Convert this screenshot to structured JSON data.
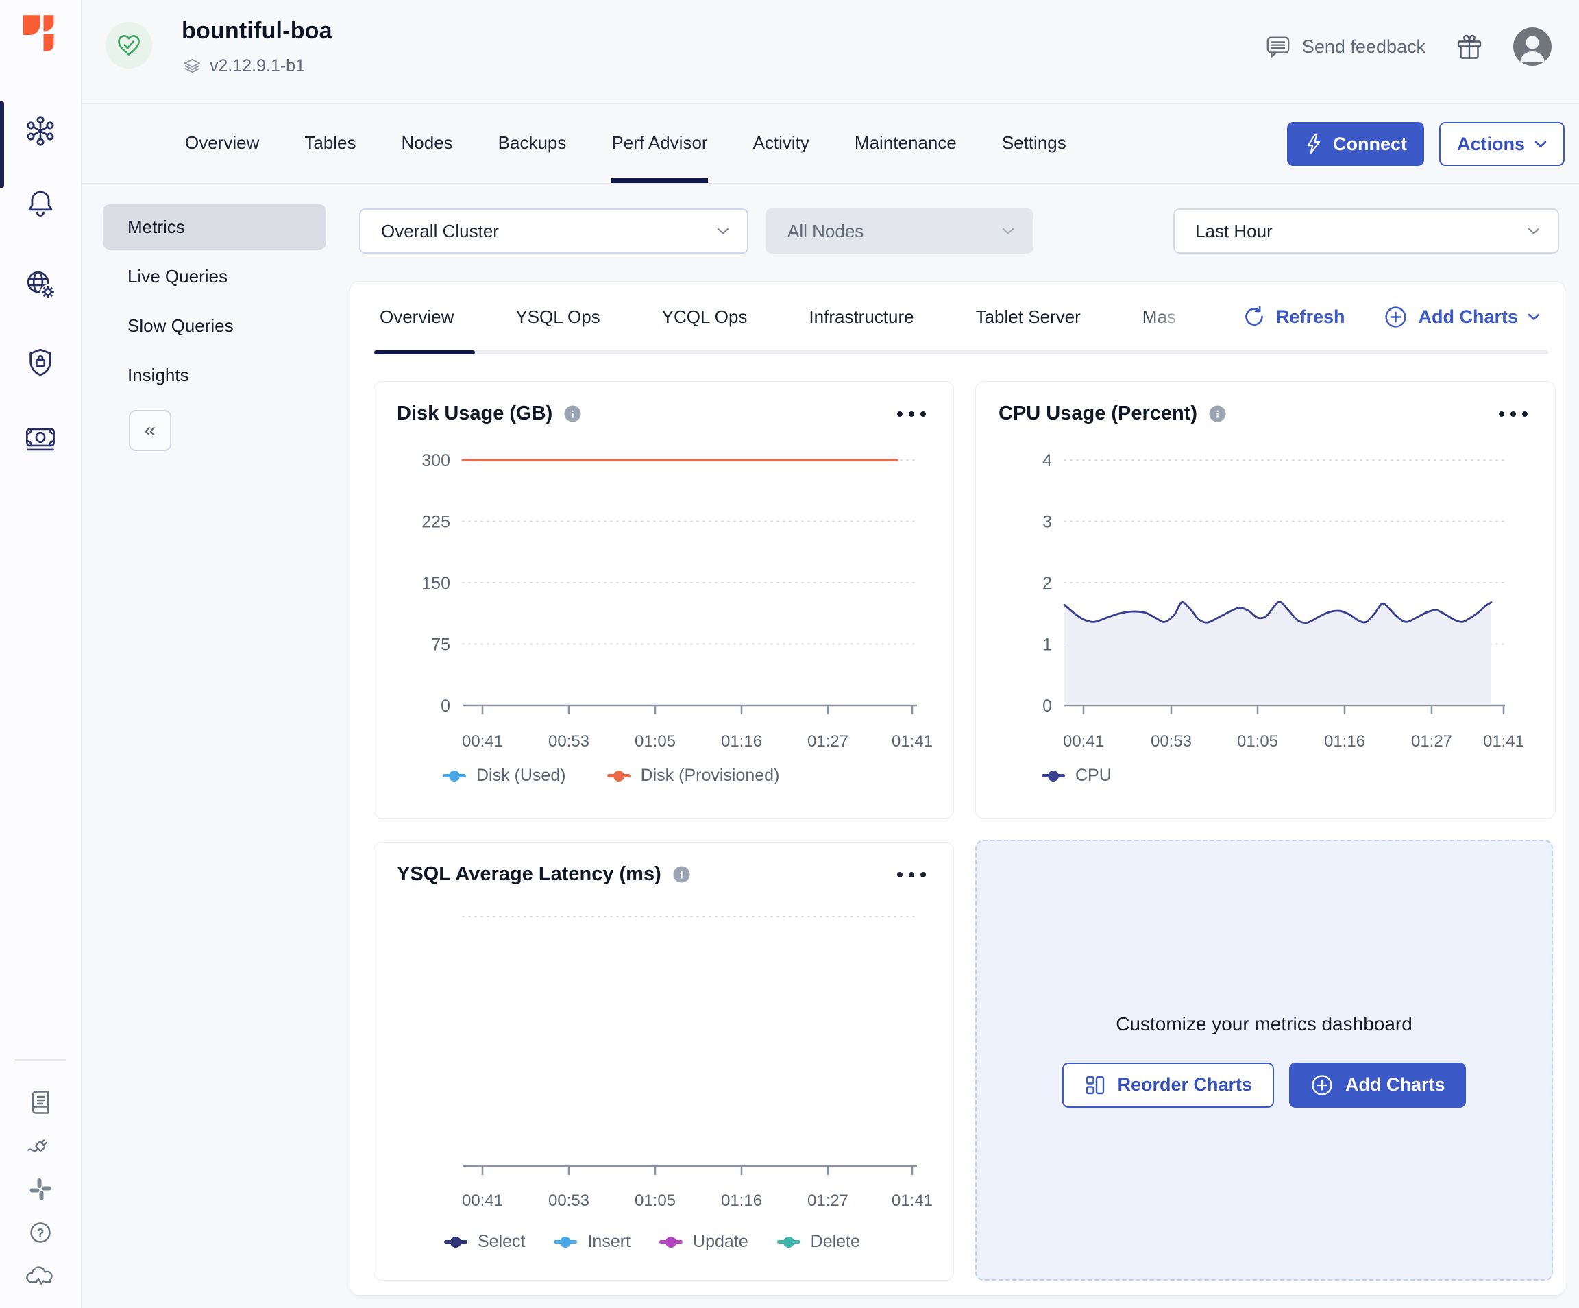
{
  "header": {
    "cluster_name": "bountiful-boa",
    "version": "v2.12.9.1-b1",
    "send_feedback_label": "Send feedback"
  },
  "nav": {
    "tabs": [
      "Overview",
      "Tables",
      "Nodes",
      "Backups",
      "Perf Advisor",
      "Activity",
      "Maintenance",
      "Settings"
    ],
    "active_tab": "Perf Advisor",
    "connect_label": "Connect",
    "actions_label": "Actions"
  },
  "sidebar": {
    "items": [
      "Metrics",
      "Live Queries",
      "Slow Queries",
      "Insights"
    ],
    "active_item": "Metrics",
    "collapse_glyph": "«"
  },
  "filters": {
    "cluster_scope": "Overall Cluster",
    "nodes_scope": "All Nodes",
    "nodes_disabled": true,
    "time_range": "Last Hour"
  },
  "metrics_tabs": {
    "items": [
      "Overview",
      "YSQL Ops",
      "YCQL Ops",
      "Infrastructure",
      "Tablet Server",
      "Mas"
    ],
    "active": "Overview",
    "refresh_label": "Refresh",
    "add_charts_label": "Add Charts"
  },
  "customize": {
    "title": "Customize your metrics dashboard",
    "reorder_label": "Reorder Charts",
    "add_label": "Add Charts"
  },
  "colors": {
    "accent_blue": "#3B5AC7",
    "navy": "#10194E",
    "logo_orange": "#F75C35",
    "health_green": "#3EA360",
    "grid_dotted": "#D8DCE2",
    "axis": "#8A93A2",
    "text_secondary": "#5A6572"
  },
  "chart_data": [
    {
      "id": "disk",
      "type": "line",
      "title": "Disk Usage (GB)",
      "ylim": [
        0,
        300
      ],
      "y_ticks": [
        0,
        75,
        150,
        225,
        300
      ],
      "x_ticks": [
        "00:41",
        "00:53",
        "01:05",
        "01:16",
        "01:27",
        "01:41"
      ],
      "grid": "horizontal-dotted",
      "legend_position": "bottom",
      "series": [
        {
          "name": "Disk (Used)",
          "color": "#4AA8E9",
          "values": []
        },
        {
          "name": "Disk (Provisioned)",
          "color": "#ED6A48",
          "values": [
            300,
            300,
            300,
            300,
            300,
            300
          ]
        }
      ]
    },
    {
      "id": "cpu",
      "type": "area",
      "title": "CPU Usage (Percent)",
      "ylim": [
        0,
        4
      ],
      "y_ticks": [
        0,
        1,
        2,
        3,
        4
      ],
      "x_ticks": [
        "00:41",
        "00:53",
        "01:05",
        "01:16",
        "01:27",
        "01:41"
      ],
      "grid": "horizontal-dotted",
      "legend_position": "bottom",
      "series": [
        {
          "name": "CPU",
          "color": "#3A4090",
          "fill": "#EDEEF6",
          "points": [
            [
              0.0,
              1.64
            ],
            [
              0.02,
              1.52
            ],
            [
              0.045,
              1.4
            ],
            [
              0.07,
              1.36
            ],
            [
              0.1,
              1.43
            ],
            [
              0.13,
              1.5
            ],
            [
              0.16,
              1.53
            ],
            [
              0.19,
              1.51
            ],
            [
              0.215,
              1.42
            ],
            [
              0.235,
              1.36
            ],
            [
              0.258,
              1.48
            ],
            [
              0.275,
              1.68
            ],
            [
              0.295,
              1.57
            ],
            [
              0.315,
              1.4
            ],
            [
              0.335,
              1.35
            ],
            [
              0.36,
              1.43
            ],
            [
              0.385,
              1.52
            ],
            [
              0.41,
              1.59
            ],
            [
              0.432,
              1.54
            ],
            [
              0.452,
              1.43
            ],
            [
              0.472,
              1.45
            ],
            [
              0.49,
              1.6
            ],
            [
              0.505,
              1.69
            ],
            [
              0.525,
              1.55
            ],
            [
              0.548,
              1.38
            ],
            [
              0.57,
              1.35
            ],
            [
              0.595,
              1.44
            ],
            [
              0.62,
              1.52
            ],
            [
              0.645,
              1.54
            ],
            [
              0.668,
              1.48
            ],
            [
              0.69,
              1.38
            ],
            [
              0.707,
              1.36
            ],
            [
              0.727,
              1.5
            ],
            [
              0.745,
              1.66
            ],
            [
              0.762,
              1.57
            ],
            [
              0.782,
              1.43
            ],
            [
              0.802,
              1.36
            ],
            [
              0.827,
              1.44
            ],
            [
              0.85,
              1.52
            ],
            [
              0.872,
              1.55
            ],
            [
              0.893,
              1.48
            ],
            [
              0.912,
              1.4
            ],
            [
              0.932,
              1.36
            ],
            [
              0.952,
              1.43
            ],
            [
              0.972,
              1.53
            ],
            [
              0.986,
              1.62
            ],
            [
              1.0,
              1.68
            ]
          ]
        }
      ]
    },
    {
      "id": "ysql",
      "type": "line",
      "title": "YSQL Average Latency (ms)",
      "ylim": null,
      "y_ticks": [],
      "x_ticks": [
        "00:41",
        "00:53",
        "01:05",
        "01:16",
        "01:27",
        "01:41"
      ],
      "grid": "single-top-dotted",
      "legend_position": "bottom",
      "series": [
        {
          "name": "Select",
          "color": "#2F3575",
          "values": []
        },
        {
          "name": "Insert",
          "color": "#47A7E8",
          "values": []
        },
        {
          "name": "Update",
          "color": "#B344BE",
          "values": []
        },
        {
          "name": "Delete",
          "color": "#3FB5AC",
          "values": []
        }
      ]
    }
  ]
}
